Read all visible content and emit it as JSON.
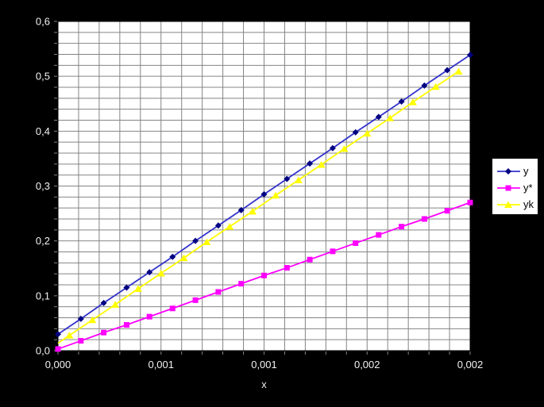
{
  "colors": {
    "page_background": "#000000",
    "plot_background": "#ffffff",
    "plot_border": "#000000",
    "gridline": "#848484",
    "tick": "#848484",
    "axis_text": "#f2f2f2",
    "legend_background": "#ffffff",
    "legend_border": "#000000",
    "legend_text": "#000000"
  },
  "x_axis_title": "x",
  "legend": {
    "entries": [
      {
        "label": "y"
      },
      {
        "label": "y*"
      },
      {
        "label": "yk"
      }
    ]
  },
  "chart_data": {
    "type": "line",
    "title": "",
    "xlabel": "x",
    "ylabel": "",
    "xlim": [
      0,
      0.002
    ],
    "ylim": [
      0,
      0.6
    ],
    "x_minor_step": 0.0001,
    "y_minor_step": 0.02,
    "grid": true,
    "legend_position": "right",
    "x_tick_labels": [
      {
        "value": 0.0,
        "text": "0,000"
      },
      {
        "value": 0.0005,
        "text": "0,001"
      },
      {
        "value": 0.001,
        "text": "0,001"
      },
      {
        "value": 0.0015,
        "text": "0,002"
      },
      {
        "value": 0.002,
        "text": "0,002"
      }
    ],
    "y_tick_labels": [
      {
        "value": 0.0,
        "text": "0,0"
      },
      {
        "value": 0.1,
        "text": "0,1"
      },
      {
        "value": 0.2,
        "text": "0,2"
      },
      {
        "value": 0.3,
        "text": "0,3"
      },
      {
        "value": 0.4,
        "text": "0,4"
      },
      {
        "value": 0.5,
        "text": "0,5"
      },
      {
        "value": 0.6,
        "text": "0,6"
      }
    ],
    "series": [
      {
        "name": "y",
        "line_color": "#3333cc",
        "marker_color": "#000080",
        "marker": "diamond",
        "marker_first_point": true,
        "x": [
          0,
          0.000111,
          0.000222,
          0.000333,
          0.000444,
          0.000556,
          0.000667,
          0.000778,
          0.000889,
          0.001,
          0.001111,
          0.001222,
          0.001333,
          0.001444,
          0.001556,
          0.001667,
          0.001778,
          0.001889,
          0.002
        ],
        "values": [
          0.03,
          0.058,
          0.087,
          0.115,
          0.143,
          0.171,
          0.2,
          0.228,
          0.256,
          0.285,
          0.313,
          0.341,
          0.369,
          0.398,
          0.426,
          0.454,
          0.483,
          0.511,
          0.539
        ]
      },
      {
        "name": "y*",
        "line_color": "#ff00ff",
        "marker_color": "#ff00ff",
        "marker": "square",
        "marker_first_point": true,
        "x": [
          0,
          0.000111,
          0.000222,
          0.000333,
          0.000444,
          0.000556,
          0.000667,
          0.000778,
          0.000889,
          0.001,
          0.001111,
          0.001222,
          0.001333,
          0.001444,
          0.001556,
          0.001667,
          0.001778,
          0.001889,
          0.002
        ],
        "values": [
          0.003,
          0.018,
          0.033,
          0.047,
          0.062,
          0.077,
          0.092,
          0.107,
          0.122,
          0.137,
          0.151,
          0.166,
          0.181,
          0.196,
          0.211,
          0.226,
          0.24,
          0.255,
          0.27
        ]
      },
      {
        "name": "yk",
        "line_color": "#ffff00",
        "marker_color": "#ffff00",
        "marker": "triangle",
        "marker_first_point": false,
        "x": [
          0,
          5.56e-05,
          0.000167,
          0.000278,
          0.000389,
          0.0005,
          0.000611,
          0.000722,
          0.000833,
          0.000944,
          0.001056,
          0.001167,
          0.001278,
          0.001389,
          0.0015,
          0.001611,
          0.001722,
          0.001833,
          0.001944
        ],
        "values": [
          0.0135,
          0.028,
          0.056,
          0.084,
          0.113,
          0.141,
          0.169,
          0.198,
          0.226,
          0.254,
          0.283,
          0.311,
          0.339,
          0.368,
          0.396,
          0.424,
          0.453,
          0.481,
          0.509
        ]
      }
    ]
  }
}
